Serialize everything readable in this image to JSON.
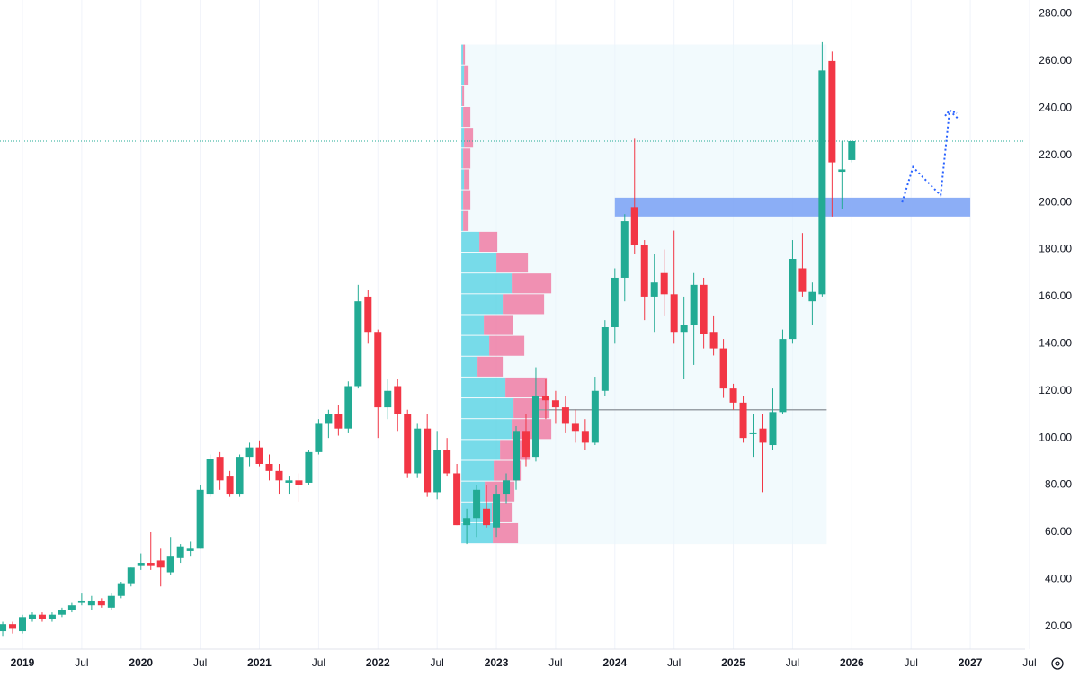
{
  "chart_data": {
    "type": "candlestick",
    "up_color": "#22ab94",
    "down_color": "#f23645",
    "categories": [
      null,
      null,
      "2019",
      null,
      null,
      null,
      null,
      null,
      "Jul",
      null,
      null,
      null,
      null,
      null,
      "2020",
      null,
      null,
      null,
      null,
      null,
      "Jul",
      null,
      null,
      null,
      null,
      null,
      "2021",
      null,
      null,
      null,
      null,
      null,
      "Jul",
      null,
      null,
      null,
      null,
      null,
      "2022",
      null,
      null,
      null,
      null,
      null,
      "Jul",
      null,
      null,
      null,
      null,
      null,
      "2023",
      null,
      null,
      null,
      null,
      null,
      "Jul",
      null,
      null,
      null,
      null,
      null,
      "2024",
      null,
      null,
      null,
      null,
      null,
      "Jul",
      null,
      null,
      null,
      null,
      null,
      "2025",
      null,
      null,
      null,
      null,
      null,
      "Jul",
      null,
      null,
      null,
      null,
      null,
      "2026",
      null,
      null,
      null,
      null,
      null,
      "Jul",
      null,
      null,
      null,
      null,
      null,
      "2027",
      null,
      null,
      null,
      null,
      null,
      "Jul"
    ],
    "open": [
      18,
      21,
      18,
      23,
      25,
      23,
      25,
      27,
      30,
      29,
      31,
      28,
      33,
      38,
      46,
      47,
      48,
      43,
      49,
      52,
      53,
      76,
      92,
      84,
      76,
      92,
      96,
      89,
      86,
      81,
      82,
      81,
      94,
      106,
      110,
      104,
      122,
      160,
      145,
      113,
      122,
      110,
      85,
      104,
      77,
      95,
      85,
      63,
      66,
      70,
      62,
      76,
      82,
      103,
      92,
      118,
      116,
      113,
      106,
      103,
      98,
      120,
      147,
      168,
      198,
      182,
      160,
      170,
      161,
      145,
      148,
      165,
      145,
      138,
      121,
      115,
      102,
      104,
      97,
      111,
      142,
      172,
      158,
      161,
      260,
      213,
      218,
      null,
      null,
      null,
      null,
      null,
      null,
      null,
      null,
      null,
      null,
      null,
      null,
      null,
      null,
      null,
      null,
      null,
      null
    ],
    "high": [
      22,
      22,
      25,
      26,
      26,
      26,
      28,
      30,
      34,
      33,
      32,
      34,
      39,
      45,
      51,
      60,
      53,
      58,
      55,
      56,
      80,
      93,
      94,
      86,
      93,
      98,
      99,
      93,
      89,
      84,
      85,
      95,
      108,
      112,
      114,
      124,
      165,
      163,
      146,
      125,
      125,
      112,
      106,
      110,
      103,
      100,
      89,
      70,
      80,
      80,
      80,
      85,
      105,
      110,
      130,
      125,
      120,
      118,
      112,
      108,
      126,
      150,
      172,
      195,
      227,
      184,
      178,
      180,
      188,
      160,
      170,
      168,
      152,
      142,
      123,
      118,
      110,
      110,
      121,
      146,
      184,
      187,
      166,
      268,
      264,
      226,
      226,
      null,
      null,
      null,
      null,
      null,
      null,
      null,
      null,
      null,
      null,
      null,
      null,
      null,
      null,
      null,
      null,
      null,
      null
    ],
    "low": [
      16,
      17,
      17,
      22,
      22,
      22,
      24,
      26,
      29,
      27,
      28,
      27,
      32,
      37,
      44,
      44,
      37,
      42,
      47,
      50,
      53,
      75,
      78,
      75,
      75,
      88,
      88,
      82,
      76,
      76,
      73,
      80,
      93,
      100,
      101,
      102,
      121,
      140,
      100,
      108,
      103,
      83,
      83,
      75,
      74,
      84,
      63,
      55,
      58,
      62,
      58,
      72,
      78,
      88,
      90,
      108,
      106,
      102,
      98,
      95,
      97,
      118,
      140,
      158,
      178,
      150,
      145,
      152,
      140,
      125,
      131,
      138,
      135,
      117,
      112,
      98,
      92,
      77,
      95,
      110,
      140,
      160,
      148,
      160,
      194,
      197,
      217,
      null,
      null,
      null,
      null,
      null,
      null,
      null,
      null,
      null,
      null,
      null,
      null,
      null,
      null,
      null,
      null,
      null,
      null
    ],
    "close": [
      21,
      19,
      24,
      25,
      23,
      25,
      27,
      29,
      31,
      31,
      29,
      33,
      38,
      45,
      47,
      46,
      45,
      50,
      54,
      53,
      78,
      91,
      82,
      76,
      92,
      96,
      89,
      86,
      82,
      82,
      80,
      94,
      106,
      110,
      104,
      122,
      158,
      145,
      113,
      120,
      110,
      85,
      104,
      77,
      95,
      85,
      63,
      66,
      78,
      63,
      76,
      82,
      103,
      92,
      118,
      116,
      113,
      106,
      103,
      98,
      120,
      147,
      168,
      192,
      182,
      160,
      166,
      161,
      145,
      148,
      165,
      144,
      138,
      121,
      115,
      100,
      102,
      98,
      111,
      142,
      176,
      162,
      162,
      256,
      217,
      214,
      226,
      null,
      null,
      null,
      null,
      null,
      null,
      null,
      null,
      null,
      null,
      null,
      null,
      null,
      null,
      null,
      null,
      null,
      null
    ],
    "ylim": [
      10,
      284
    ],
    "yticks": [
      {
        "value": 20,
        "label": "20.00"
      },
      {
        "value": 40,
        "label": "40.00"
      },
      {
        "value": 60,
        "label": "60.00"
      },
      {
        "value": 80,
        "label": "80.00"
      },
      {
        "value": 100,
        "label": "100.00"
      },
      {
        "value": 120,
        "label": "120.00"
      },
      {
        "value": 140,
        "label": "140.00"
      },
      {
        "value": 160,
        "label": "160.00"
      },
      {
        "value": 180,
        "label": "180.00"
      },
      {
        "value": 200,
        "label": "200.00"
      },
      {
        "value": 220,
        "label": "220.00"
      },
      {
        "value": 240,
        "label": "240.00"
      },
      {
        "value": 260,
        "label": "260.00"
      },
      {
        "value": 280,
        "label": "280.00"
      }
    ],
    "grid": true,
    "current_price": 226,
    "volume_profile": {
      "start_index": 46,
      "end_index": 83,
      "price_range": [
        55,
        267
      ],
      "buy": [
        35,
        34,
        26,
        36,
        43,
        56,
        58,
        49,
        18,
        31,
        25,
        46,
        56,
        39,
        20,
        2,
        2,
        3,
        2,
        3,
        2,
        1,
        3,
        2
      ],
      "sell": [
        28,
        22,
        33,
        30,
        33,
        44,
        40,
        46,
        28,
        39,
        32,
        46,
        44,
        35,
        20,
        6,
        8,
        6,
        8,
        10,
        8,
        2,
        5,
        2
      ],
      "buy_color": "#4dd0e1",
      "sell_color": "#f06292",
      "poc": 112
    },
    "zone": {
      "price": [
        194,
        202
      ],
      "start_index": 62,
      "end_index": 98,
      "color": "#7fa5f5"
    },
    "projection": {
      "x": [
        91.1,
        92.2,
        95.0,
        95.9,
        96.9
      ],
      "y": [
        200,
        215,
        203,
        239,
        235
      ],
      "color": "#2962ff"
    }
  }
}
